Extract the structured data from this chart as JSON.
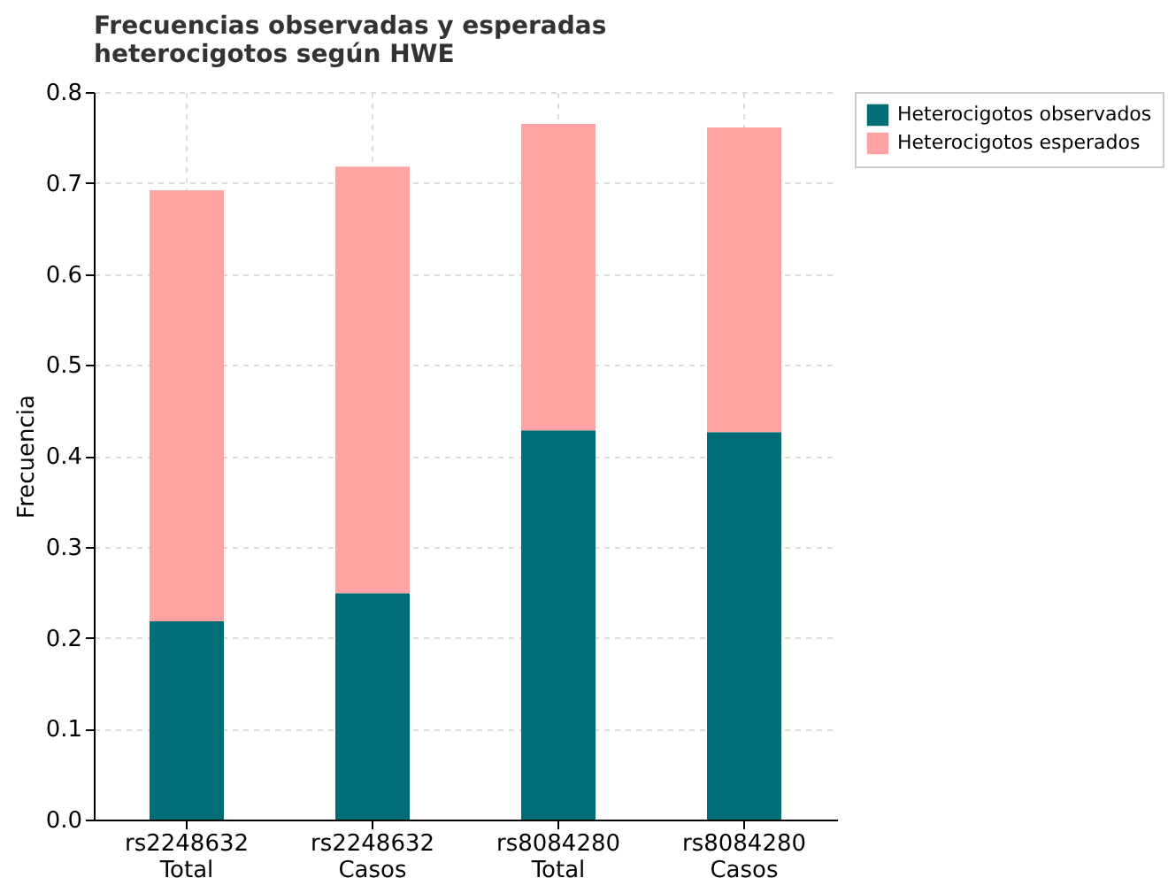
{
  "chart_data": {
    "type": "bar",
    "title": "Frecuencias observadas y esperadas\nheterocigotos según HWE",
    "ylabel": "Frecuencia",
    "categories": [
      "rs2248632\nTotal",
      "rs2248632\nCasos",
      "rs8084280\nTotal",
      "rs8084280\nCasos"
    ],
    "stacked": true,
    "series": [
      {
        "name": "Heterocigotos observados",
        "color": "#006d77",
        "values": [
          0.218,
          0.249,
          0.428,
          0.426
        ]
      },
      {
        "name": "Heterocigotos esperados",
        "color": "#ffa3a3",
        "values": [
          0.474,
          0.469,
          0.337,
          0.335
        ]
      }
    ],
    "ylim": [
      0,
      0.8
    ],
    "yticks": [
      {
        "value": 0,
        "label": "0.0"
      },
      0.1,
      0.2,
      0.3,
      0.4,
      0.5,
      0.6,
      0.7,
      0.8
    ],
    "grid": true,
    "legend": "right"
  }
}
